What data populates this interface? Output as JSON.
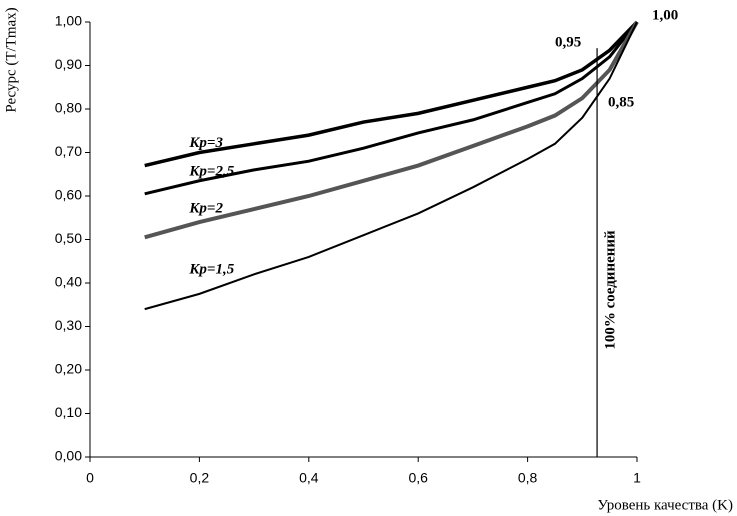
{
  "chart_data": {
    "type": "line",
    "x_label": "Уровень качества (K)",
    "y_label": "Ресурс (T/Tmax)",
    "xlim": [
      0,
      1
    ],
    "ylim": [
      0,
      1
    ],
    "xticks": [
      0,
      {
        "value": 0.2,
        "label": "0,2"
      },
      {
        "value": 0.4,
        "label": "0,4"
      },
      {
        "value": 0.6,
        "label": "0,6"
      },
      {
        "value": 0.8,
        "label": "0,8"
      },
      1
    ],
    "yticks": [
      {
        "value": 0,
        "label": "0,00"
      },
      {
        "value": 0.1,
        "label": "0,10"
      },
      {
        "value": 0.2,
        "label": "0,20"
      },
      {
        "value": 0.3,
        "label": "0,30"
      },
      {
        "value": 0.4,
        "label": "0,40"
      },
      {
        "value": 0.5,
        "label": "0,50"
      },
      {
        "value": 0.6,
        "label": "0,60"
      },
      {
        "value": 0.7,
        "label": "0,70"
      },
      {
        "value": 0.8,
        "label": "0,80"
      },
      {
        "value": 0.9,
        "label": "0,90"
      },
      {
        "value": 1,
        "label": "1,00"
      }
    ],
    "x": [
      0.1,
      0.2,
      0.3,
      0.4,
      0.5,
      0.6,
      0.7,
      0.8,
      0.85,
      0.9,
      0.95,
      1
    ],
    "series": [
      {
        "name": "Kр=3",
        "color": "#000000",
        "values": [
          0.67,
          0.7,
          0.72,
          0.74,
          0.77,
          0.79,
          0.82,
          0.85,
          0.865,
          0.89,
          0.935,
          1.0
        ]
      },
      {
        "name": "Kр=2,5",
        "color": "#000000",
        "values": [
          0.605,
          0.635,
          0.66,
          0.68,
          0.71,
          0.745,
          0.775,
          0.815,
          0.835,
          0.87,
          0.92,
          1.0
        ]
      },
      {
        "name": "Kр=2",
        "color": "#555555",
        "values": [
          0.505,
          0.54,
          0.57,
          0.6,
          0.635,
          0.67,
          0.715,
          0.76,
          0.785,
          0.825,
          0.89,
          1.0
        ]
      },
      {
        "name": "Kр=1,5",
        "color": "#000000",
        "values": [
          0.34,
          0.375,
          0.42,
          0.46,
          0.51,
          0.56,
          0.62,
          0.685,
          0.72,
          0.78,
          0.87,
          1.0
        ]
      }
    ],
    "reference_line": {
      "x": 0.927,
      "label": "100% соединений"
    },
    "annotations": [
      "0,95",
      "0,85",
      "1,00"
    ]
  }
}
